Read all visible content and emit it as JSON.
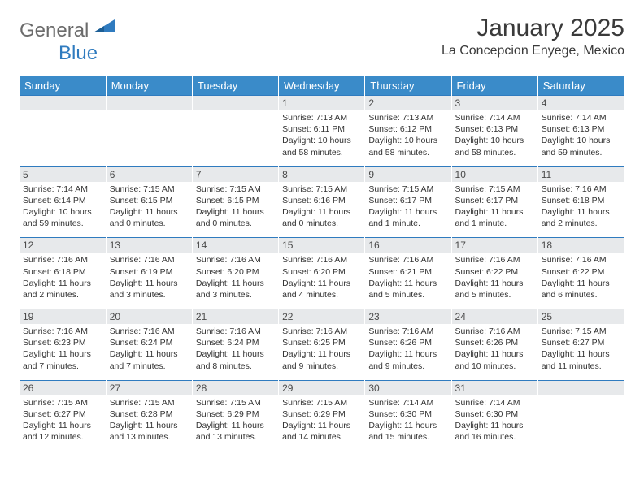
{
  "brand": {
    "part1": "General",
    "part2": "Blue"
  },
  "title": {
    "month": "January 2025",
    "location": "La Concepcion Enyege, Mexico"
  },
  "header": {
    "bg": "#3a8bc9",
    "fg": "#ffffff",
    "days": [
      "Sunday",
      "Monday",
      "Tuesday",
      "Wednesday",
      "Thursday",
      "Friday",
      "Saturday"
    ]
  },
  "daybar": {
    "bg": "#e7e9eb",
    "border": "#2f7bbf"
  },
  "weeks": [
    [
      null,
      null,
      null,
      {
        "n": "1",
        "sr": "7:13 AM",
        "ss": "6:11 PM",
        "dl": "10 hours and 58 minutes."
      },
      {
        "n": "2",
        "sr": "7:13 AM",
        "ss": "6:12 PM",
        "dl": "10 hours and 58 minutes."
      },
      {
        "n": "3",
        "sr": "7:14 AM",
        "ss": "6:13 PM",
        "dl": "10 hours and 58 minutes."
      },
      {
        "n": "4",
        "sr": "7:14 AM",
        "ss": "6:13 PM",
        "dl": "10 hours and 59 minutes."
      }
    ],
    [
      {
        "n": "5",
        "sr": "7:14 AM",
        "ss": "6:14 PM",
        "dl": "10 hours and 59 minutes."
      },
      {
        "n": "6",
        "sr": "7:15 AM",
        "ss": "6:15 PM",
        "dl": "11 hours and 0 minutes."
      },
      {
        "n": "7",
        "sr": "7:15 AM",
        "ss": "6:15 PM",
        "dl": "11 hours and 0 minutes."
      },
      {
        "n": "8",
        "sr": "7:15 AM",
        "ss": "6:16 PM",
        "dl": "11 hours and 0 minutes."
      },
      {
        "n": "9",
        "sr": "7:15 AM",
        "ss": "6:17 PM",
        "dl": "11 hours and 1 minute."
      },
      {
        "n": "10",
        "sr": "7:15 AM",
        "ss": "6:17 PM",
        "dl": "11 hours and 1 minute."
      },
      {
        "n": "11",
        "sr": "7:16 AM",
        "ss": "6:18 PM",
        "dl": "11 hours and 2 minutes."
      }
    ],
    [
      {
        "n": "12",
        "sr": "7:16 AM",
        "ss": "6:18 PM",
        "dl": "11 hours and 2 minutes."
      },
      {
        "n": "13",
        "sr": "7:16 AM",
        "ss": "6:19 PM",
        "dl": "11 hours and 3 minutes."
      },
      {
        "n": "14",
        "sr": "7:16 AM",
        "ss": "6:20 PM",
        "dl": "11 hours and 3 minutes."
      },
      {
        "n": "15",
        "sr": "7:16 AM",
        "ss": "6:20 PM",
        "dl": "11 hours and 4 minutes."
      },
      {
        "n": "16",
        "sr": "7:16 AM",
        "ss": "6:21 PM",
        "dl": "11 hours and 5 minutes."
      },
      {
        "n": "17",
        "sr": "7:16 AM",
        "ss": "6:22 PM",
        "dl": "11 hours and 5 minutes."
      },
      {
        "n": "18",
        "sr": "7:16 AM",
        "ss": "6:22 PM",
        "dl": "11 hours and 6 minutes."
      }
    ],
    [
      {
        "n": "19",
        "sr": "7:16 AM",
        "ss": "6:23 PM",
        "dl": "11 hours and 7 minutes."
      },
      {
        "n": "20",
        "sr": "7:16 AM",
        "ss": "6:24 PM",
        "dl": "11 hours and 7 minutes."
      },
      {
        "n": "21",
        "sr": "7:16 AM",
        "ss": "6:24 PM",
        "dl": "11 hours and 8 minutes."
      },
      {
        "n": "22",
        "sr": "7:16 AM",
        "ss": "6:25 PM",
        "dl": "11 hours and 9 minutes."
      },
      {
        "n": "23",
        "sr": "7:16 AM",
        "ss": "6:26 PM",
        "dl": "11 hours and 9 minutes."
      },
      {
        "n": "24",
        "sr": "7:16 AM",
        "ss": "6:26 PM",
        "dl": "11 hours and 10 minutes."
      },
      {
        "n": "25",
        "sr": "7:15 AM",
        "ss": "6:27 PM",
        "dl": "11 hours and 11 minutes."
      }
    ],
    [
      {
        "n": "26",
        "sr": "7:15 AM",
        "ss": "6:27 PM",
        "dl": "11 hours and 12 minutes."
      },
      {
        "n": "27",
        "sr": "7:15 AM",
        "ss": "6:28 PM",
        "dl": "11 hours and 13 minutes."
      },
      {
        "n": "28",
        "sr": "7:15 AM",
        "ss": "6:29 PM",
        "dl": "11 hours and 13 minutes."
      },
      {
        "n": "29",
        "sr": "7:15 AM",
        "ss": "6:29 PM",
        "dl": "11 hours and 14 minutes."
      },
      {
        "n": "30",
        "sr": "7:14 AM",
        "ss": "6:30 PM",
        "dl": "11 hours and 15 minutes."
      },
      {
        "n": "31",
        "sr": "7:14 AM",
        "ss": "6:30 PM",
        "dl": "11 hours and 16 minutes."
      },
      null
    ]
  ],
  "labels": {
    "sunrise": "Sunrise:",
    "sunset": "Sunset:",
    "daylight": "Daylight:"
  }
}
